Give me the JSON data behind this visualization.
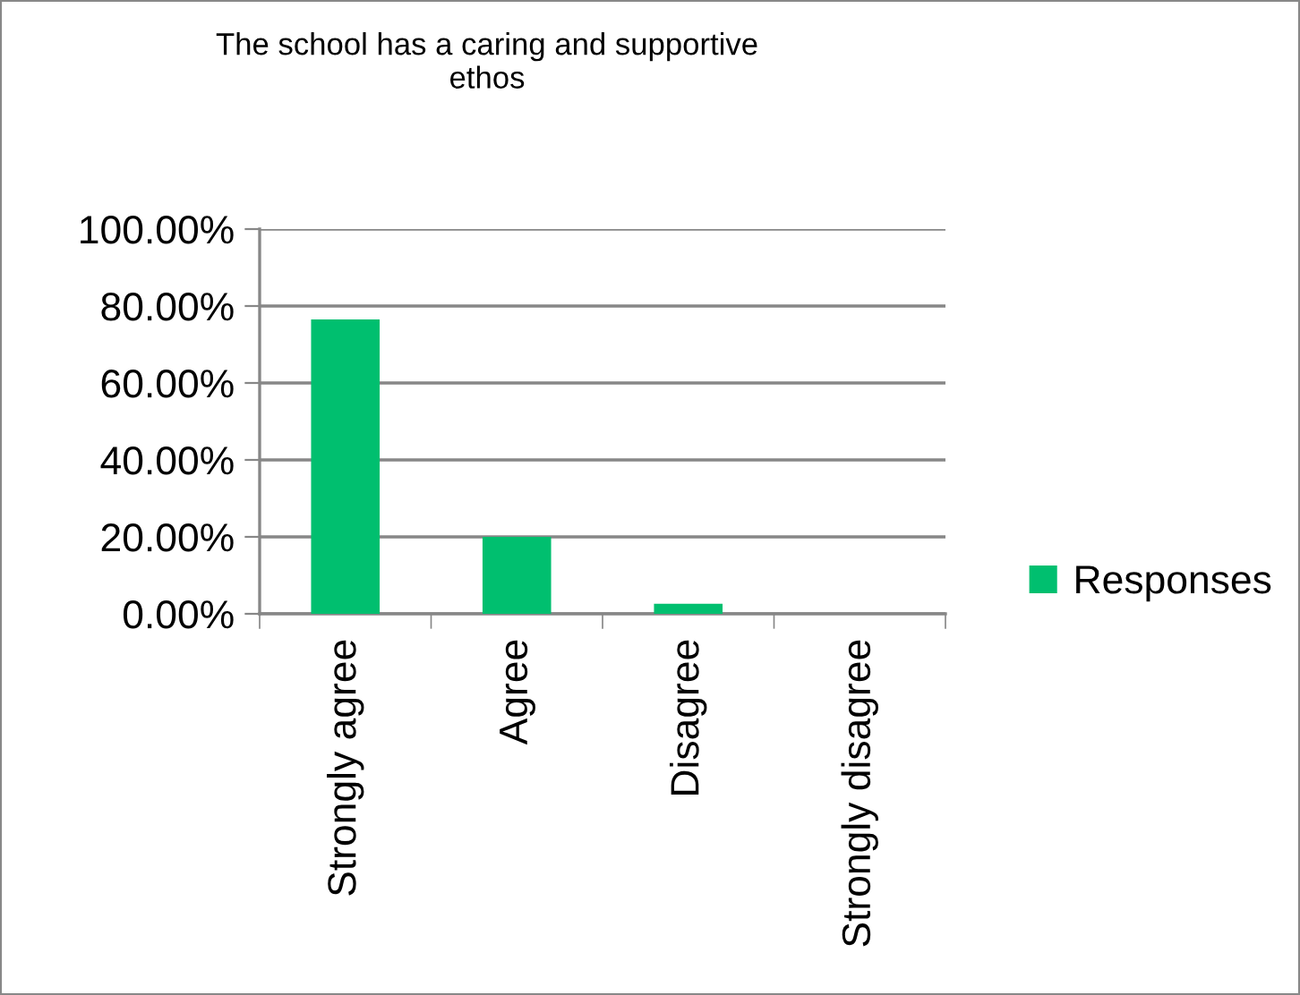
{
  "chart_data": {
    "type": "bar",
    "title": "The school has a caring and supportive\nethos",
    "categories": [
      "Strongly agree",
      "Agree",
      "Disagree",
      "Strongly disagree"
    ],
    "series": [
      {
        "name": "Responses",
        "color": "#00bf6f",
        "values": [
          76.5,
          20.0,
          2.6,
          0
        ]
      }
    ],
    "ylim": [
      0,
      100
    ],
    "yticks": [
      {
        "value": 0,
        "label": "0.00%"
      },
      {
        "value": 20,
        "label": "20.00%"
      },
      {
        "value": 40,
        "label": "40.00%"
      },
      {
        "value": 60,
        "label": "60.00%"
      },
      {
        "value": 80,
        "label": "80.00%"
      },
      {
        "value": 100,
        "label": "100.00%"
      }
    ],
    "grid": "y",
    "legend": "right"
  }
}
